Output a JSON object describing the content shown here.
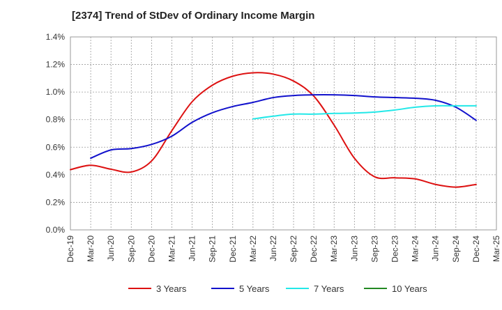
{
  "chart_data": {
    "type": "line",
    "title": "[2374]  Trend of StDev of Ordinary Income Margin",
    "xlabel": "",
    "ylabel": "",
    "ylim": [
      0,
      0.014
    ],
    "yticks": [
      "0.0%",
      "0.2%",
      "0.4%",
      "0.6%",
      "0.8%",
      "1.0%",
      "1.2%",
      "1.4%"
    ],
    "yticks_values": [
      0,
      0.002,
      0.004,
      0.006,
      0.008,
      0.01,
      0.012,
      0.014
    ],
    "categories": [
      "Dec-19",
      "Mar-20",
      "Jun-20",
      "Sep-20",
      "Dec-20",
      "Mar-21",
      "Jun-21",
      "Sep-21",
      "Dec-21",
      "Mar-22",
      "Jun-22",
      "Sep-22",
      "Dec-22",
      "Mar-23",
      "Jun-23",
      "Sep-23",
      "Dec-23",
      "Mar-24",
      "Jun-24",
      "Sep-24",
      "Dec-24",
      "Mar-25"
    ],
    "grid": true,
    "legend_position": "bottom",
    "series": [
      {
        "name": "3 Years",
        "color": "#dd1111",
        "values": [
          0.00437,
          0.00469,
          0.0044,
          0.0042,
          0.005,
          0.0072,
          0.0093,
          0.0105,
          0.01115,
          0.0114,
          0.0113,
          0.0108,
          0.0097,
          0.0076,
          0.0052,
          0.00385,
          0.00378,
          0.0037,
          0.0033,
          0.0031,
          0.0033,
          null
        ]
      },
      {
        "name": "5 Years",
        "color": "#1111cc",
        "values": [
          null,
          0.0052,
          0.0058,
          0.0059,
          0.0062,
          0.0068,
          0.0078,
          0.0085,
          0.00895,
          0.00925,
          0.0096,
          0.00975,
          0.0098,
          0.0098,
          0.00975,
          0.00965,
          0.0096,
          0.00955,
          0.0094,
          0.0089,
          0.00795,
          null
        ]
      },
      {
        "name": "7 Years",
        "color": "#22e8e8",
        "values": [
          null,
          null,
          null,
          null,
          null,
          null,
          null,
          null,
          null,
          0.00805,
          0.00825,
          0.0084,
          0.0084,
          0.00845,
          0.00848,
          0.00855,
          0.0087,
          0.0089,
          0.009,
          0.009,
          0.009,
          null
        ]
      },
      {
        "name": "10 Years",
        "color": "#228822",
        "values": [
          null,
          null,
          null,
          null,
          null,
          null,
          null,
          null,
          null,
          null,
          null,
          null,
          null,
          null,
          null,
          null,
          null,
          null,
          null,
          null,
          null,
          null
        ]
      }
    ]
  }
}
